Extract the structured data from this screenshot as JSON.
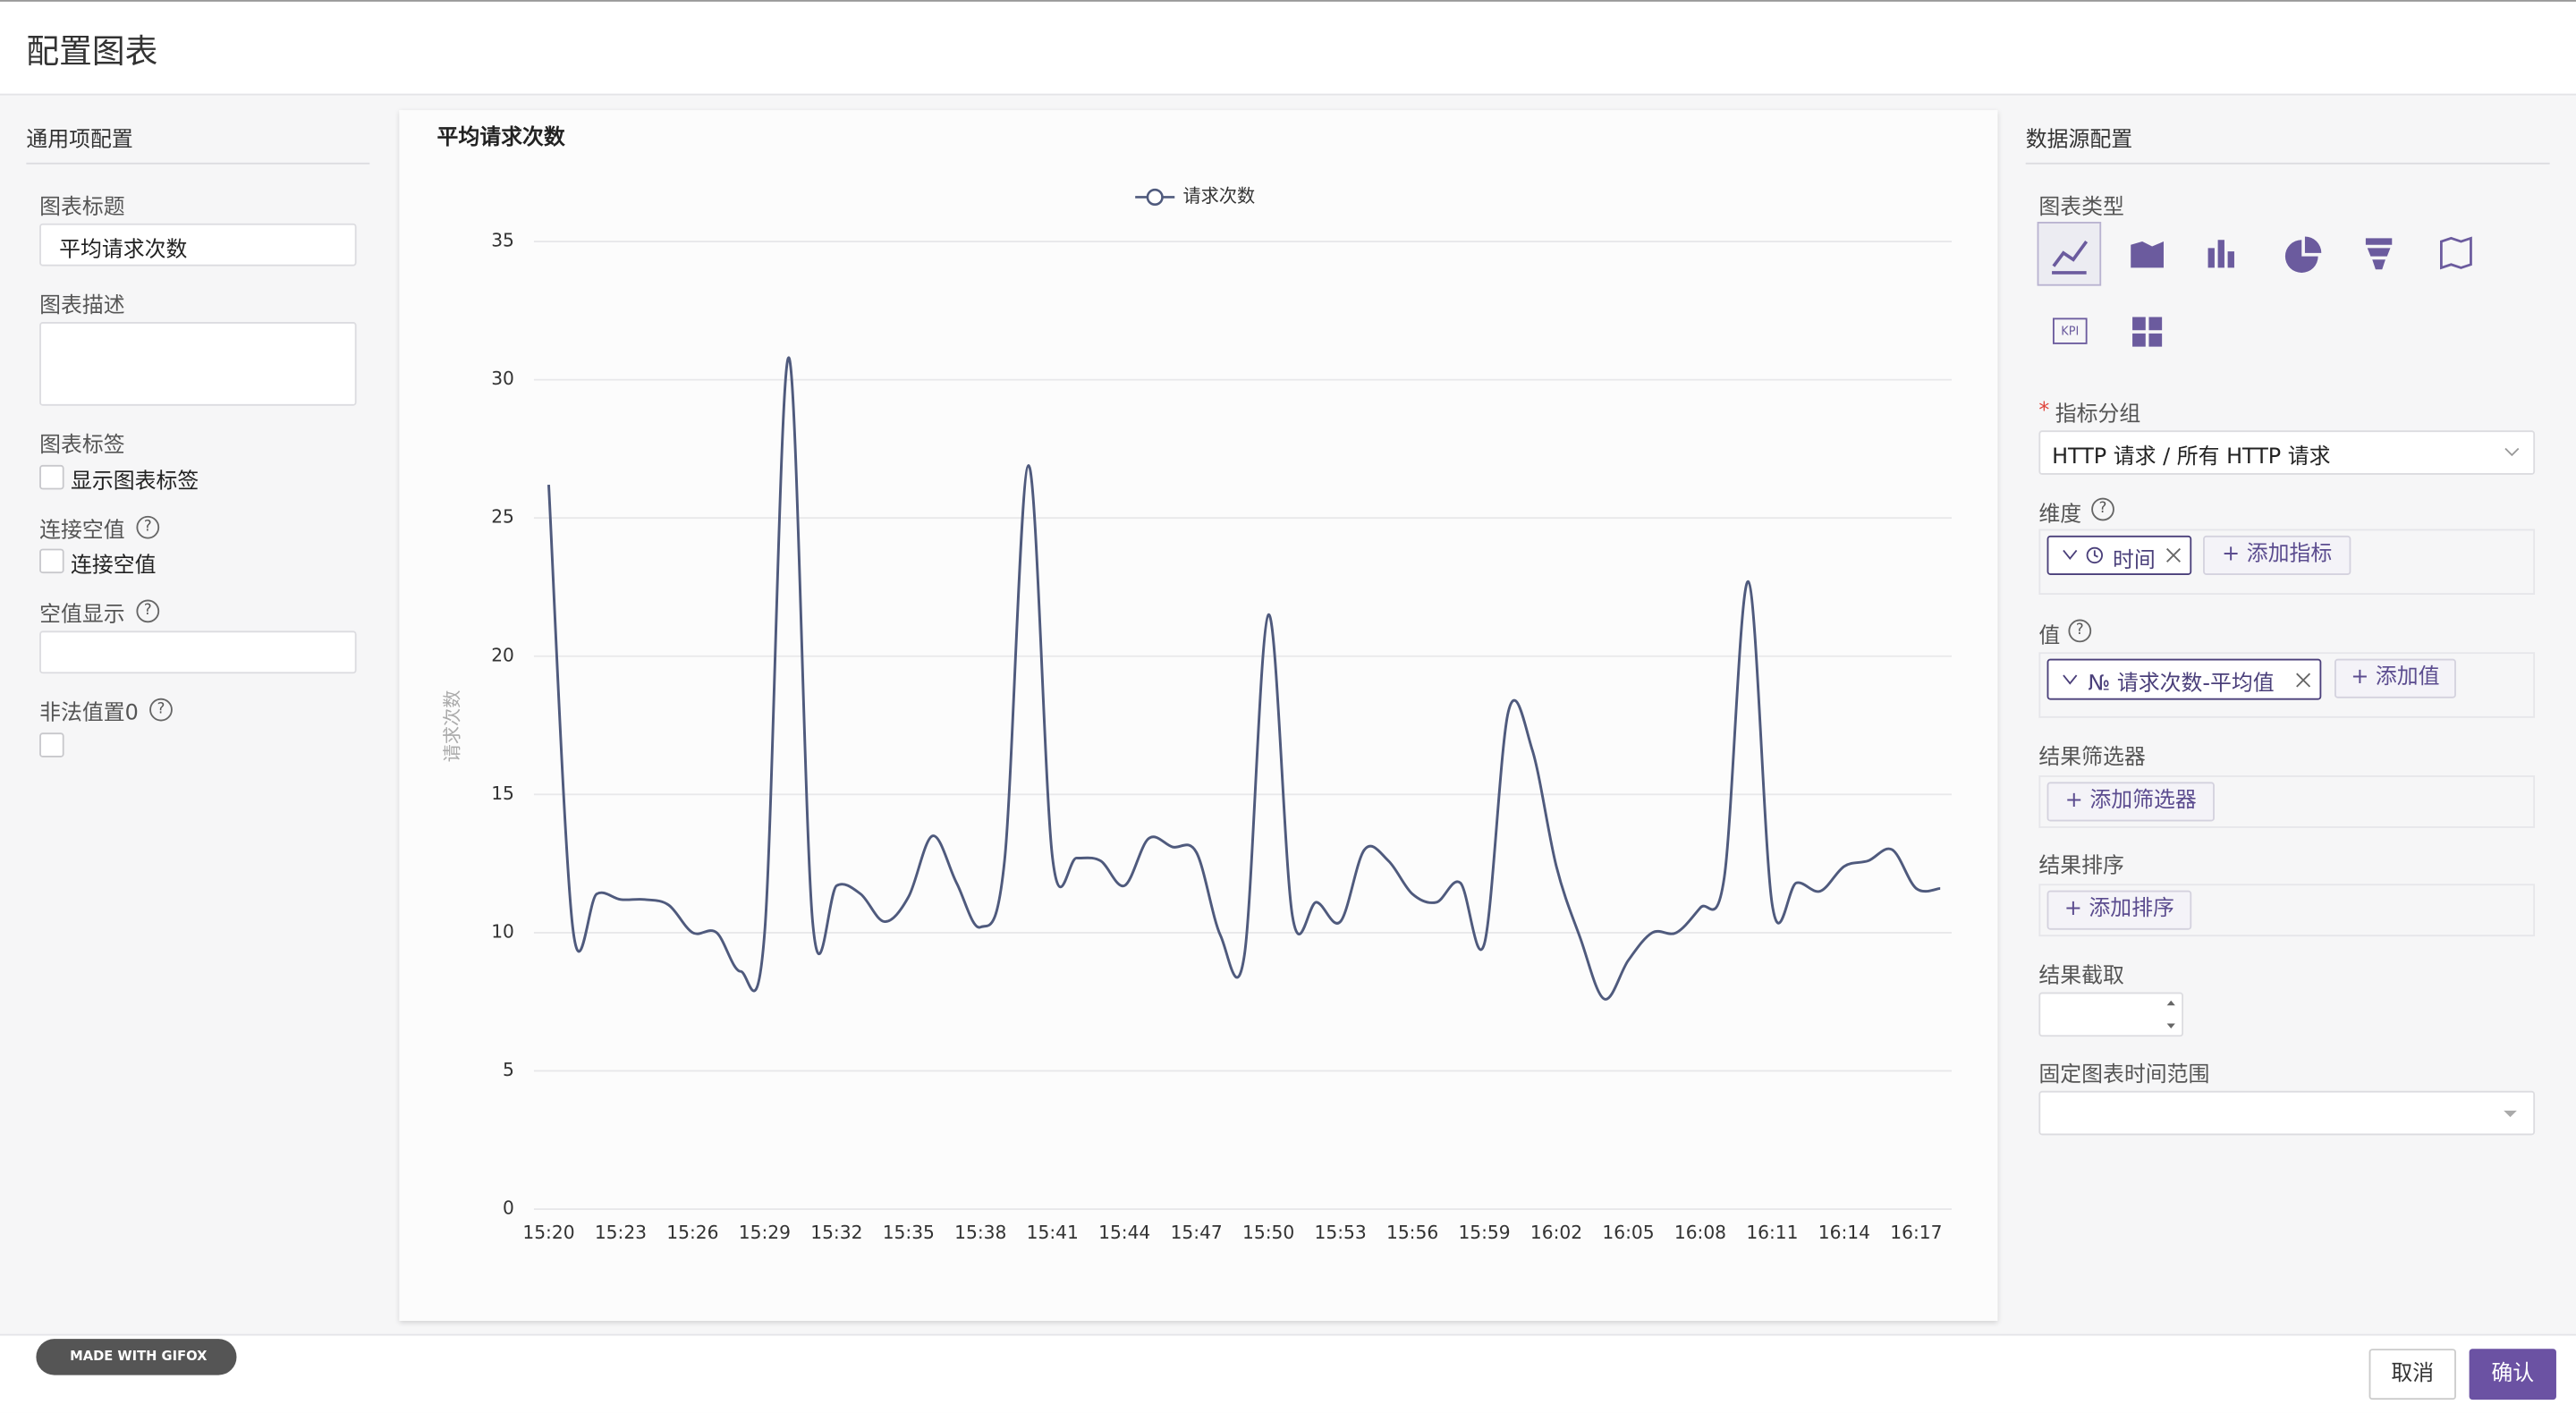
{
  "header": {
    "title": "配置图表"
  },
  "help": "?",
  "left_panel": {
    "title": "通用项配置",
    "chart_title_label": "图表标题",
    "chart_title_value": "平均请求次数",
    "description_label": "图表描述",
    "tags_label": "图表标签",
    "show_tags": "显示图表标签",
    "connect_nulls_label": "连接空值",
    "connect_nulls_option": "连接空值",
    "null_display_label": "空值显示",
    "invalid_zero_label": "非法值置0"
  },
  "chart_data": {
    "type": "line",
    "title": "平均请求次数",
    "y_label": "请求次数",
    "categories": [
      "15:20",
      null,
      null,
      "15:23",
      null,
      null,
      "15:26",
      null,
      null,
      "15:29",
      null,
      null,
      "15:32",
      null,
      null,
      "15:35",
      null,
      null,
      "15:38",
      null,
      null,
      "15:41",
      null,
      null,
      "15:44",
      null,
      null,
      "15:47",
      null,
      null,
      "15:50",
      null,
      null,
      "15:53",
      null,
      null,
      "15:56",
      null,
      null,
      "15:59",
      null,
      null,
      "16:02",
      null,
      null,
      "16:05",
      null,
      null,
      "16:08",
      null,
      null,
      "16:11",
      null,
      null,
      "16:14",
      null,
      null,
      "16:17",
      null
    ],
    "series": [
      {
        "name": "请求次数",
        "color": "#4f5a7d",
        "values": [
          26.2,
          10.2,
          11.4,
          11.2,
          11.2,
          11.0,
          10.0,
          10.0,
          8.6,
          10.0,
          30.8,
          10.4,
          11.7,
          11.4,
          10.4,
          11.3,
          13.5,
          11.8,
          10.2,
          12.6,
          26.9,
          12.7,
          12.7,
          12.6,
          11.7,
          13.4,
          13.1,
          12.9,
          9.9,
          9.2,
          21.5,
          10.6,
          11.1,
          10.4,
          13.0,
          12.6,
          11.4,
          11.1,
          11.8,
          9.6,
          18.0,
          16.6,
          12.4,
          9.8,
          7.6,
          9.0,
          10.0,
          10.0,
          10.9,
          12.0,
          22.7,
          11.0,
          11.8,
          11.5,
          12.4,
          12.6,
          13.0,
          11.6,
          11.6
        ]
      }
    ],
    "ylim": [
      0,
      35
    ],
    "yticks": [
      0,
      5,
      10,
      15,
      20,
      25,
      30,
      35
    ],
    "grid": true,
    "legend": "top"
  },
  "right_panel": {
    "title": "数据源配置",
    "chart_type_label": "图表类型",
    "kpi_icon": "KPI",
    "required_mark": "*",
    "metric_group_label": "指标分组",
    "metric_group_value": "HTTP 请求 / 所有 HTTP 请求",
    "dimension_label": "维度",
    "dimension_tag": "时间",
    "add_dimension": "+ 添加指标",
    "value_label": "值",
    "value_tag": "№ 请求次数-平均值",
    "add_value": "+ 添加值",
    "filter_label": "结果筛选器",
    "add_filter": "+ 添加筛选器",
    "sort_label": "结果排序",
    "add_sort": "+ 添加排序",
    "limit_label": "结果截取",
    "time_range_label": "固定图表时间范围"
  },
  "footer": {
    "badge": "MADE WITH GIFOX",
    "cancel": "取消",
    "confirm": "确认"
  }
}
